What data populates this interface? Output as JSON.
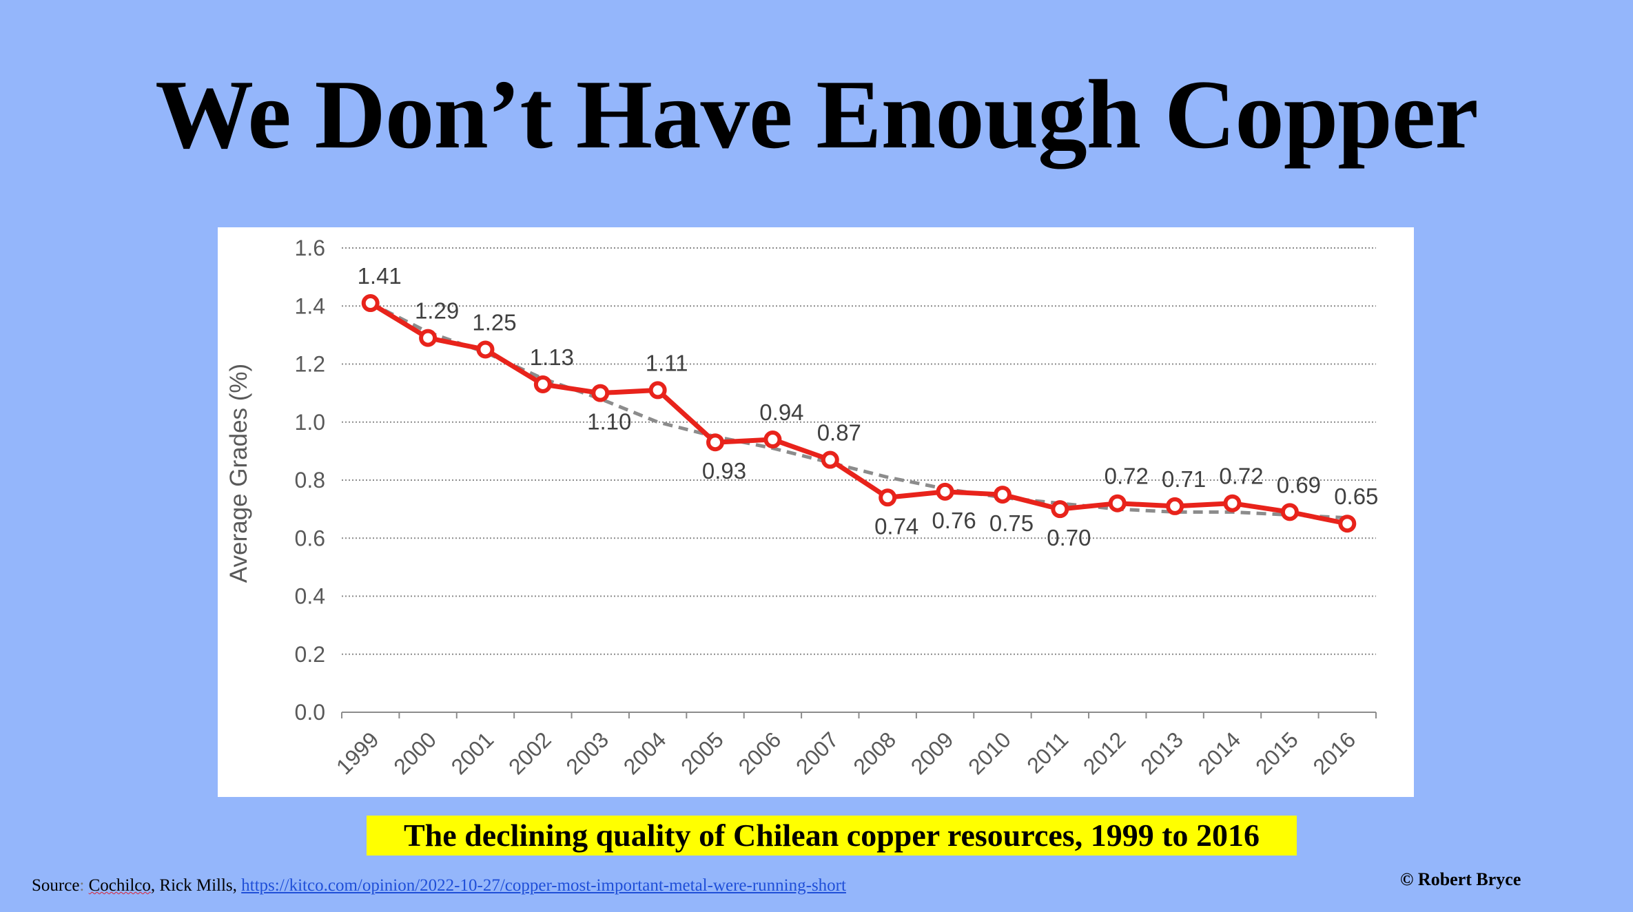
{
  "slide": {
    "title": "We Don’t Have Enough Copper",
    "caption": "The declining quality of Chilean copper resources, 1999 to 2016",
    "source_prefix": "Source",
    "source_colon": ":",
    "source_names": "Cochilco",
    "source_rest": ", Rick Mills, ",
    "source_link": "https://kitco.com/opinion/2022-10-27/copper-most-important-metal-were-running-short",
    "copyright": "© Robert Bryce"
  },
  "colors": {
    "background": "#94b6fb",
    "series": "#e8231b",
    "trend": "#8c8c8c",
    "caption_highlight": "#ffff00"
  },
  "chart_data": {
    "type": "line",
    "title": "",
    "xlabel": "",
    "ylabel": "Average  Grades  (%)",
    "ylim": [
      0,
      1.6
    ],
    "yticks": [
      0.0,
      0.2,
      0.4,
      0.6,
      0.8,
      1.0,
      1.2,
      1.4,
      1.6
    ],
    "ytick_labels": [
      "0.0",
      "0.2",
      "0.4",
      "0.6",
      "0.8",
      "1.0",
      "1.2",
      "1.4",
      "1.6"
    ],
    "grid": "horizontal dotted",
    "x": [
      "1999",
      "2000",
      "2001",
      "2002",
      "2003",
      "2004",
      "2005",
      "2006",
      "2007",
      "2008",
      "2009",
      "2010",
      "2011",
      "2012",
      "2013",
      "2014",
      "2015",
      "2016"
    ],
    "series": [
      {
        "style": "solid-markers",
        "values": [
          1.41,
          1.29,
          1.25,
          1.13,
          1.1,
          1.11,
          0.93,
          0.94,
          0.87,
          0.74,
          0.76,
          0.75,
          0.7,
          0.72,
          0.71,
          0.72,
          0.69,
          0.65
        ],
        "labels": [
          "1.41",
          "1.29",
          "1.25",
          "1.13",
          "1.10",
          "1.11",
          "0.93",
          "0.94",
          "0.87",
          "0.74",
          "0.76",
          "0.75",
          "0.70",
          "0.72",
          "0.71",
          "0.72",
          "0.69",
          "0.65"
        ],
        "label_positions": [
          "above",
          "above",
          "above",
          "above",
          "below",
          "above",
          "below",
          "above",
          "above",
          "below",
          "below",
          "below",
          "below",
          "above",
          "above",
          "above",
          "above",
          "above"
        ]
      },
      {
        "style": "dashed-trend",
        "values": [
          1.41,
          1.31,
          1.24,
          1.15,
          1.08,
          1.0,
          0.95,
          0.91,
          0.86,
          0.81,
          0.77,
          0.74,
          0.72,
          0.7,
          0.69,
          0.69,
          0.68,
          0.67
        ]
      }
    ]
  }
}
